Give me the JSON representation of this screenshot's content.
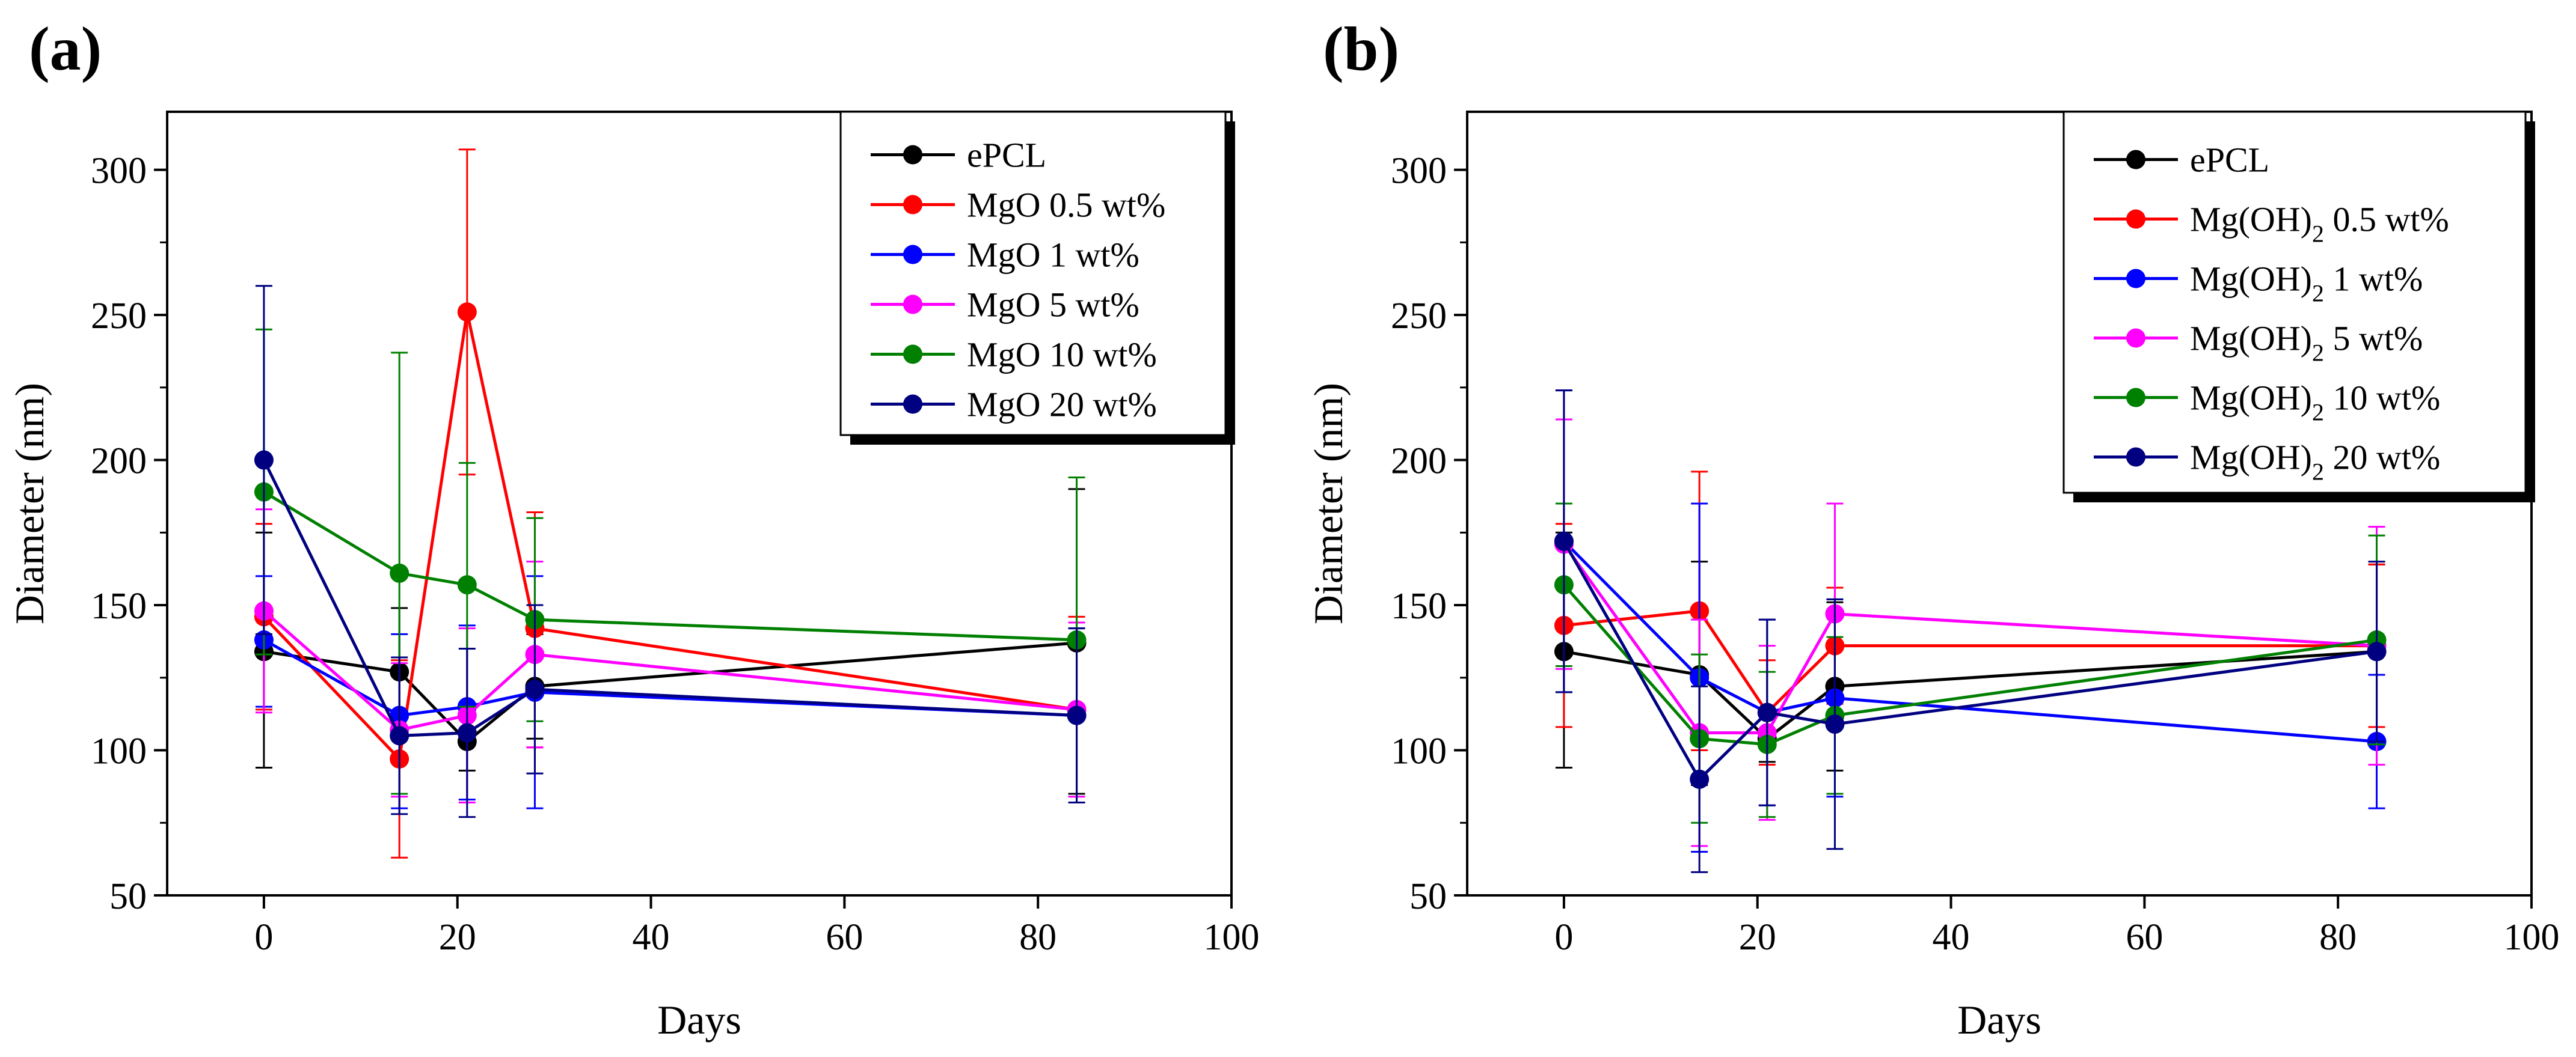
{
  "colors": {
    "ePCL": "#000000",
    "s05": "#ff0000",
    "s1": "#0000ff",
    "s5": "#ff00ff",
    "s10": "#008000",
    "s20": "#000080"
  },
  "chart_data": [
    {
      "panel_label": "(a)",
      "type": "line",
      "xlabel": "Days",
      "ylabel": "Diameter (nm)",
      "xlim": [
        -10,
        100
      ],
      "ylim": [
        50,
        320
      ],
      "xticks": [
        0,
        20,
        40,
        60,
        80,
        100
      ],
      "yticks": [
        50,
        100,
        150,
        200,
        250,
        300
      ],
      "legend_position": "top-right",
      "x": [
        0,
        14,
        21,
        28,
        84
      ],
      "series": [
        {
          "key": "ePCL",
          "name": "ePCL",
          "color": "#000000",
          "values": [
            134,
            127,
            103,
            122,
            137
          ],
          "err_low": [
            94,
            105,
            93,
            104,
            85
          ],
          "err_high": [
            175,
            149,
            113,
            140,
            190
          ]
        },
        {
          "key": "s05",
          "name": "MgO 0.5 wt%",
          "color": "#ff0000",
          "values": [
            146,
            97,
            251,
            142,
            114
          ],
          "err_low": [
            114,
            63,
            195,
            101,
            82
          ],
          "err_high": [
            178,
            131,
            307,
            182,
            146
          ]
        },
        {
          "key": "s1",
          "name": "MgO 1 wt%",
          "color": "#0000ff",
          "values": [
            138,
            112,
            115,
            120,
            112
          ],
          "err_low": [
            115,
            80,
            83,
            80,
            82
          ],
          "err_high": [
            160,
            140,
            143,
            160,
            142
          ]
        },
        {
          "key": "s5",
          "name": "MgO 5 wt%",
          "color": "#ff00ff",
          "values": [
            148,
            107,
            112,
            133,
            114
          ],
          "err_low": [
            113,
            84,
            82,
            101,
            84
          ],
          "err_high": [
            183,
            130,
            142,
            165,
            144
          ]
        },
        {
          "key": "s10",
          "name": "MgO 10 wt%",
          "color": "#008000",
          "values": [
            189,
            161,
            157,
            145,
            138
          ],
          "err_low": [
            133,
            85,
            115,
            110,
            82
          ],
          "err_high": [
            245,
            237,
            199,
            180,
            194
          ]
        },
        {
          "key": "s20",
          "name": "MgO 20 wt%",
          "color": "#000080",
          "values": [
            200,
            105,
            106,
            121,
            112
          ],
          "err_low": [
            140,
            78,
            77,
            92,
            82
          ],
          "err_high": [
            260,
            132,
            135,
            150,
            142
          ]
        }
      ]
    },
    {
      "panel_label": "(b)",
      "type": "line",
      "xlabel": "Days",
      "ylabel": "Diameter (nm)",
      "xlim": [
        -10,
        100
      ],
      "ylim": [
        50,
        320
      ],
      "xticks": [
        0,
        20,
        40,
        60,
        80,
        100
      ],
      "yticks": [
        50,
        100,
        150,
        200,
        250,
        300
      ],
      "legend_position": "top-right",
      "x": [
        0,
        14,
        21,
        28,
        84
      ],
      "series": [
        {
          "key": "ePCL",
          "name": "ePCL",
          "color": "#000000",
          "values": [
            134,
            126,
            104,
            122,
            134
          ],
          "err_low": [
            94,
            88,
            96,
            93,
            104
          ],
          "err_high": [
            175,
            165,
            112,
            151,
            164
          ]
        },
        {
          "key": "s05",
          "name": "Mg(OH)",
          "sub": "2",
          "suffix": " 0.5 wt%",
          "color": "#ff0000",
          "values": [
            143,
            148,
            113,
            136,
            136
          ],
          "err_low": [
            108,
            100,
            95,
            116,
            108
          ],
          "err_high": [
            178,
            196,
            131,
            156,
            164
          ]
        },
        {
          "key": "s1",
          "name": "Mg(OH)",
          "sub": "2",
          "suffix": " 1 wt%",
          "color": "#0000ff",
          "values": [
            172,
            125,
            113,
            118,
            103
          ],
          "err_low": [
            120,
            65,
            81,
            84,
            80
          ],
          "err_high": [
            224,
            185,
            145,
            152,
            126
          ]
        },
        {
          "key": "s5",
          "name": "Mg(OH)",
          "sub": "2",
          "suffix": " 5 wt%",
          "color": "#ff00ff",
          "values": [
            171,
            106,
            106,
            147,
            136
          ],
          "err_low": [
            128,
            67,
            76,
            109,
            95
          ],
          "err_high": [
            214,
            145,
            136,
            185,
            177
          ]
        },
        {
          "key": "s10",
          "name": "Mg(OH)",
          "sub": "2",
          "suffix": " 10 wt%",
          "color": "#008000",
          "values": [
            157,
            104,
            102,
            112,
            138
          ],
          "err_low": [
            129,
            75,
            77,
            85,
            102
          ],
          "err_high": [
            185,
            133,
            127,
            139,
            174
          ]
        },
        {
          "key": "s20",
          "name": "Mg(OH)",
          "sub": "2",
          "suffix": " 20 wt%",
          "color": "#000080",
          "values": [
            172,
            90,
            113,
            109,
            134
          ],
          "err_low": [
            120,
            58,
            81,
            66,
            103
          ],
          "err_high": [
            224,
            122,
            145,
            152,
            165
          ]
        }
      ]
    }
  ]
}
